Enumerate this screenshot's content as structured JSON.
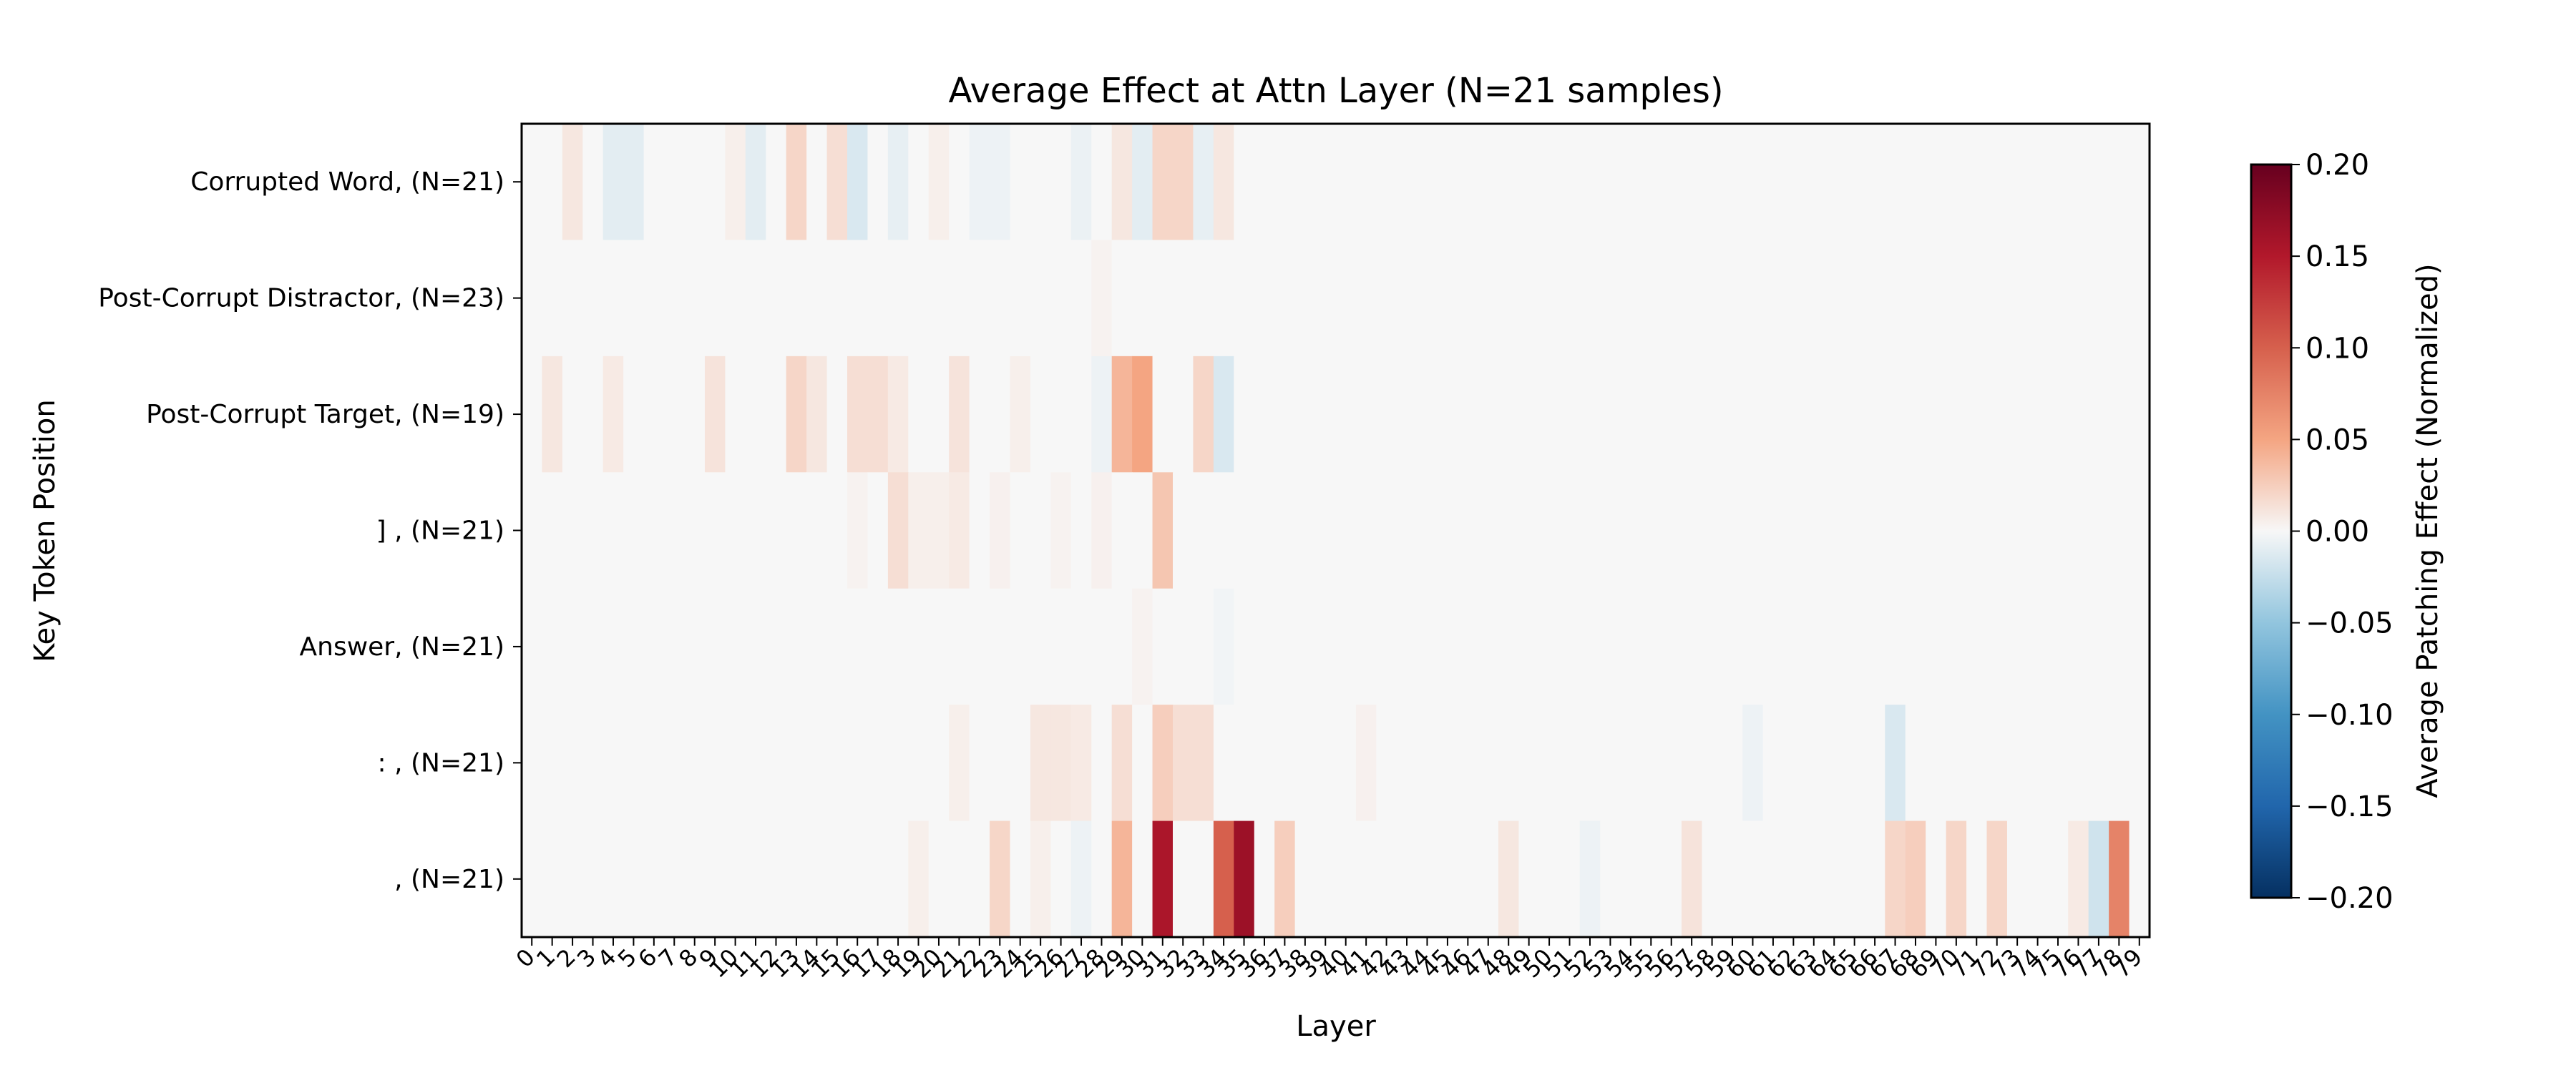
{
  "chart_data": {
    "type": "heatmap",
    "title": "Average Effect at Attn Layer (N=21 samples)",
    "xlabel": "Layer",
    "ylabel": "Key Token Position",
    "x_categories": [
      "0",
      "1",
      "2",
      "3",
      "4",
      "5",
      "6",
      "7",
      "8",
      "9",
      "10",
      "11",
      "12",
      "13",
      "14",
      "15",
      "16",
      "17",
      "18",
      "19",
      "20",
      "21",
      "22",
      "23",
      "24",
      "25",
      "26",
      "27",
      "28",
      "29",
      "30",
      "31",
      "32",
      "33",
      "34",
      "35",
      "36",
      "37",
      "38",
      "39",
      "40",
      "41",
      "42",
      "43",
      "44",
      "45",
      "46",
      "47",
      "48",
      "49",
      "50",
      "51",
      "52",
      "53",
      "54",
      "55",
      "56",
      "57",
      "58",
      "59",
      "60",
      "61",
      "62",
      "63",
      "64",
      "65",
      "66",
      "67",
      "68",
      "69",
      "70",
      "71",
      "72",
      "73",
      "74",
      "75",
      "76",
      "77",
      "78",
      "79"
    ],
    "y_categories": [
      "Corrupted Word, (N=21)",
      "Post-Corrupt Distractor, (N=23)",
      "Post-Corrupt Target, (N=19)",
      "] , (N=21)",
      "Answer, (N=21)",
      ": , (N=21)",
      ", (N=21)"
    ],
    "colorbar": {
      "label": "Average Patching Effect (Normalized)",
      "range": [
        -0.2,
        0.2
      ],
      "ticks": [
        "0.20",
        "0.15",
        "0.10",
        "0.05",
        "0.00",
        "−0.05",
        "−0.10",
        "−0.15",
        "−0.20"
      ],
      "colormap": "RdBu_r"
    },
    "grid": false,
    "legend": "none",
    "nonzero_cells": [
      {
        "row": 0,
        "col": 2,
        "value": 0.01
      },
      {
        "row": 0,
        "col": 4,
        "value": -0.01
      },
      {
        "row": 0,
        "col": 5,
        "value": -0.01
      },
      {
        "row": 0,
        "col": 10,
        "value": 0.005
      },
      {
        "row": 0,
        "col": 11,
        "value": -0.01
      },
      {
        "row": 0,
        "col": 13,
        "value": 0.02
      },
      {
        "row": 0,
        "col": 15,
        "value": 0.015
      },
      {
        "row": 0,
        "col": 16,
        "value": -0.015
      },
      {
        "row": 0,
        "col": 18,
        "value": -0.008
      },
      {
        "row": 0,
        "col": 20,
        "value": 0.005
      },
      {
        "row": 0,
        "col": 22,
        "value": -0.005
      },
      {
        "row": 0,
        "col": 23,
        "value": -0.005
      },
      {
        "row": 0,
        "col": 27,
        "value": -0.006
      },
      {
        "row": 0,
        "col": 29,
        "value": 0.01
      },
      {
        "row": 0,
        "col": 30,
        "value": -0.01
      },
      {
        "row": 0,
        "col": 31,
        "value": 0.02
      },
      {
        "row": 0,
        "col": 32,
        "value": 0.02
      },
      {
        "row": 0,
        "col": 33,
        "value": -0.008
      },
      {
        "row": 0,
        "col": 34,
        "value": 0.01
      },
      {
        "row": 1,
        "col": 28,
        "value": 0.003
      },
      {
        "row": 2,
        "col": 1,
        "value": 0.01
      },
      {
        "row": 2,
        "col": 4,
        "value": 0.008
      },
      {
        "row": 2,
        "col": 9,
        "value": 0.012
      },
      {
        "row": 2,
        "col": 13,
        "value": 0.02
      },
      {
        "row": 2,
        "col": 14,
        "value": 0.01
      },
      {
        "row": 2,
        "col": 16,
        "value": 0.015
      },
      {
        "row": 2,
        "col": 17,
        "value": 0.015
      },
      {
        "row": 2,
        "col": 18,
        "value": 0.008
      },
      {
        "row": 2,
        "col": 21,
        "value": 0.012
      },
      {
        "row": 2,
        "col": 24,
        "value": 0.005
      },
      {
        "row": 2,
        "col": 28,
        "value": -0.005
      },
      {
        "row": 2,
        "col": 29,
        "value": 0.04
      },
      {
        "row": 2,
        "col": 30,
        "value": 0.05
      },
      {
        "row": 2,
        "col": 33,
        "value": 0.02
      },
      {
        "row": 2,
        "col": 34,
        "value": -0.015
      },
      {
        "row": 3,
        "col": 16,
        "value": 0.003
      },
      {
        "row": 3,
        "col": 18,
        "value": 0.015
      },
      {
        "row": 3,
        "col": 19,
        "value": 0.005
      },
      {
        "row": 3,
        "col": 20,
        "value": 0.005
      },
      {
        "row": 3,
        "col": 21,
        "value": 0.008
      },
      {
        "row": 3,
        "col": 23,
        "value": 0.004
      },
      {
        "row": 3,
        "col": 26,
        "value": 0.003
      },
      {
        "row": 3,
        "col": 28,
        "value": 0.004
      },
      {
        "row": 3,
        "col": 31,
        "value": 0.03
      },
      {
        "row": 4,
        "col": 30,
        "value": 0.003
      },
      {
        "row": 4,
        "col": 34,
        "value": -0.003
      },
      {
        "row": 5,
        "col": 21,
        "value": 0.005
      },
      {
        "row": 5,
        "col": 25,
        "value": 0.01
      },
      {
        "row": 5,
        "col": 26,
        "value": 0.01
      },
      {
        "row": 5,
        "col": 27,
        "value": 0.008
      },
      {
        "row": 5,
        "col": 29,
        "value": 0.015
      },
      {
        "row": 5,
        "col": 31,
        "value": 0.025
      },
      {
        "row": 5,
        "col": 32,
        "value": 0.015
      },
      {
        "row": 5,
        "col": 33,
        "value": 0.015
      },
      {
        "row": 5,
        "col": 41,
        "value": 0.004
      },
      {
        "row": 5,
        "col": 60,
        "value": -0.005
      },
      {
        "row": 5,
        "col": 67,
        "value": -0.015
      },
      {
        "row": 6,
        "col": 19,
        "value": 0.005
      },
      {
        "row": 6,
        "col": 23,
        "value": 0.02
      },
      {
        "row": 6,
        "col": 25,
        "value": 0.005
      },
      {
        "row": 6,
        "col": 27,
        "value": -0.005
      },
      {
        "row": 6,
        "col": 29,
        "value": 0.04
      },
      {
        "row": 6,
        "col": 31,
        "value": 0.155
      },
      {
        "row": 6,
        "col": 34,
        "value": 0.1
      },
      {
        "row": 6,
        "col": 35,
        "value": 0.165
      },
      {
        "row": 6,
        "col": 37,
        "value": 0.025
      },
      {
        "row": 6,
        "col": 48,
        "value": 0.01
      },
      {
        "row": 6,
        "col": 52,
        "value": -0.005
      },
      {
        "row": 6,
        "col": 57,
        "value": 0.012
      },
      {
        "row": 6,
        "col": 67,
        "value": 0.02
      },
      {
        "row": 6,
        "col": 68,
        "value": 0.025
      },
      {
        "row": 6,
        "col": 70,
        "value": 0.02
      },
      {
        "row": 6,
        "col": 72,
        "value": 0.02
      },
      {
        "row": 6,
        "col": 76,
        "value": 0.008
      },
      {
        "row": 6,
        "col": 77,
        "value": -0.02
      },
      {
        "row": 6,
        "col": 78,
        "value": 0.075
      }
    ]
  }
}
